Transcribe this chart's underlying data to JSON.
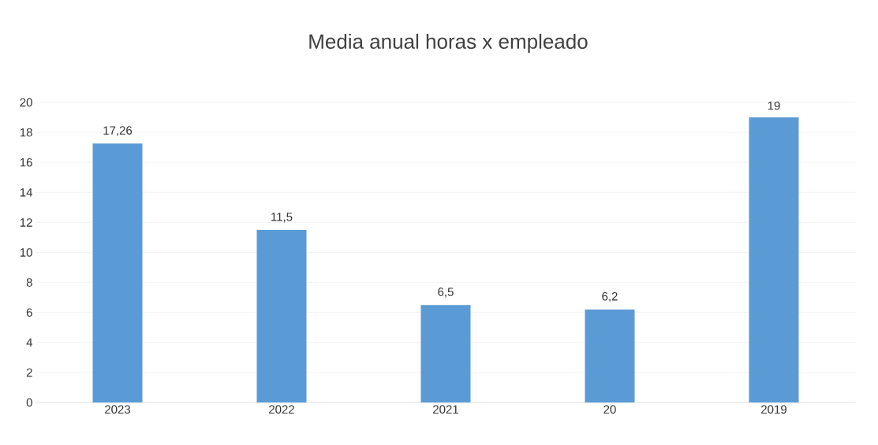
{
  "chart_data": {
    "type": "bar",
    "title": "Media anual horas x empleado",
    "categories": [
      "2023",
      "2022",
      "2021",
      "20",
      "2019"
    ],
    "values": [
      17.26,
      11.5,
      6.5,
      6.2,
      19
    ],
    "value_labels": [
      "17,26",
      "11,5",
      "6,5",
      "6,2",
      "19"
    ],
    "color": "#5b9bd5",
    "ylim": [
      0,
      20
    ],
    "yticks": [
      0,
      2,
      4,
      6,
      8,
      10,
      12,
      14,
      16,
      18,
      20
    ],
    "grid": "y"
  }
}
